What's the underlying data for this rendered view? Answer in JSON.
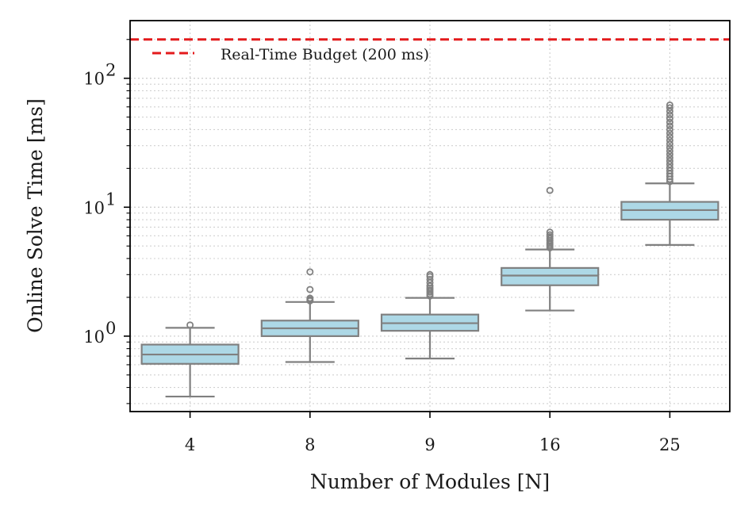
{
  "chart_data": {
    "type": "box",
    "xlabel": "Number of Modules [N]",
    "ylabel": "Online Solve Time [ms]",
    "yscale": "log",
    "ylim": [
      0.26,
      280
    ],
    "grid": true,
    "categories": [
      "4",
      "8",
      "9",
      "16",
      "25"
    ],
    "boxes": [
      {
        "category": "4",
        "whisker_low": 0.34,
        "q1": 0.61,
        "median": 0.72,
        "q3": 0.86,
        "whisker_high": 1.16,
        "outliers": [
          1.22
        ]
      },
      {
        "category": "8",
        "whisker_low": 0.63,
        "q1": 1.0,
        "median": 1.15,
        "q3": 1.32,
        "whisker_high": 1.84,
        "outliers": [
          1.88,
          1.92,
          1.97,
          2.3,
          3.15
        ]
      },
      {
        "category": "9",
        "whisker_low": 0.67,
        "q1": 1.1,
        "median": 1.26,
        "q3": 1.47,
        "whisker_high": 1.98,
        "outliers": [
          2.05,
          2.12,
          2.2,
          2.28,
          2.36,
          2.45,
          2.6,
          2.75,
          2.9,
          3.0
        ]
      },
      {
        "category": "16",
        "whisker_low": 1.58,
        "q1": 2.48,
        "median": 2.95,
        "q3": 3.38,
        "whisker_high": 4.7,
        "outliers": [
          4.85,
          5.0,
          5.15,
          5.3,
          5.5,
          5.7,
          5.9,
          6.1,
          6.4,
          13.5
        ]
      },
      {
        "category": "25",
        "whisker_low": 5.1,
        "q1": 8.0,
        "median": 9.5,
        "q3": 11.0,
        "whisker_high": 15.3,
        "outliers": [
          15.8,
          16.5,
          17.3,
          18.2,
          19.2,
          20.3,
          21.5,
          22.8,
          24.2,
          25.7,
          27.3,
          29.0,
          31.0,
          33.0,
          35.2,
          37.5,
          40.0,
          42.7,
          45.6,
          48.7,
          52.0,
          55.5,
          59.0,
          62.0
        ]
      }
    ],
    "reference_line": {
      "value": 200,
      "label": "Real-Time Budget (200 ms)",
      "color": "#e31a1c",
      "style": "dashed"
    },
    "legend": {
      "placement": "top-left",
      "entries": [
        "Real-Time Budget (200 ms)"
      ]
    },
    "y_tick_labels": [
      {
        "base": "10",
        "exp": "0",
        "value": 1
      },
      {
        "base": "10",
        "exp": "1",
        "value": 10
      },
      {
        "base": "10",
        "exp": "2",
        "value": 100
      }
    ],
    "colors": {
      "box_fill": "#add8e6",
      "box_edge": "#808080",
      "budget": "#e31a1c",
      "grid": "#d0d0d0"
    }
  }
}
